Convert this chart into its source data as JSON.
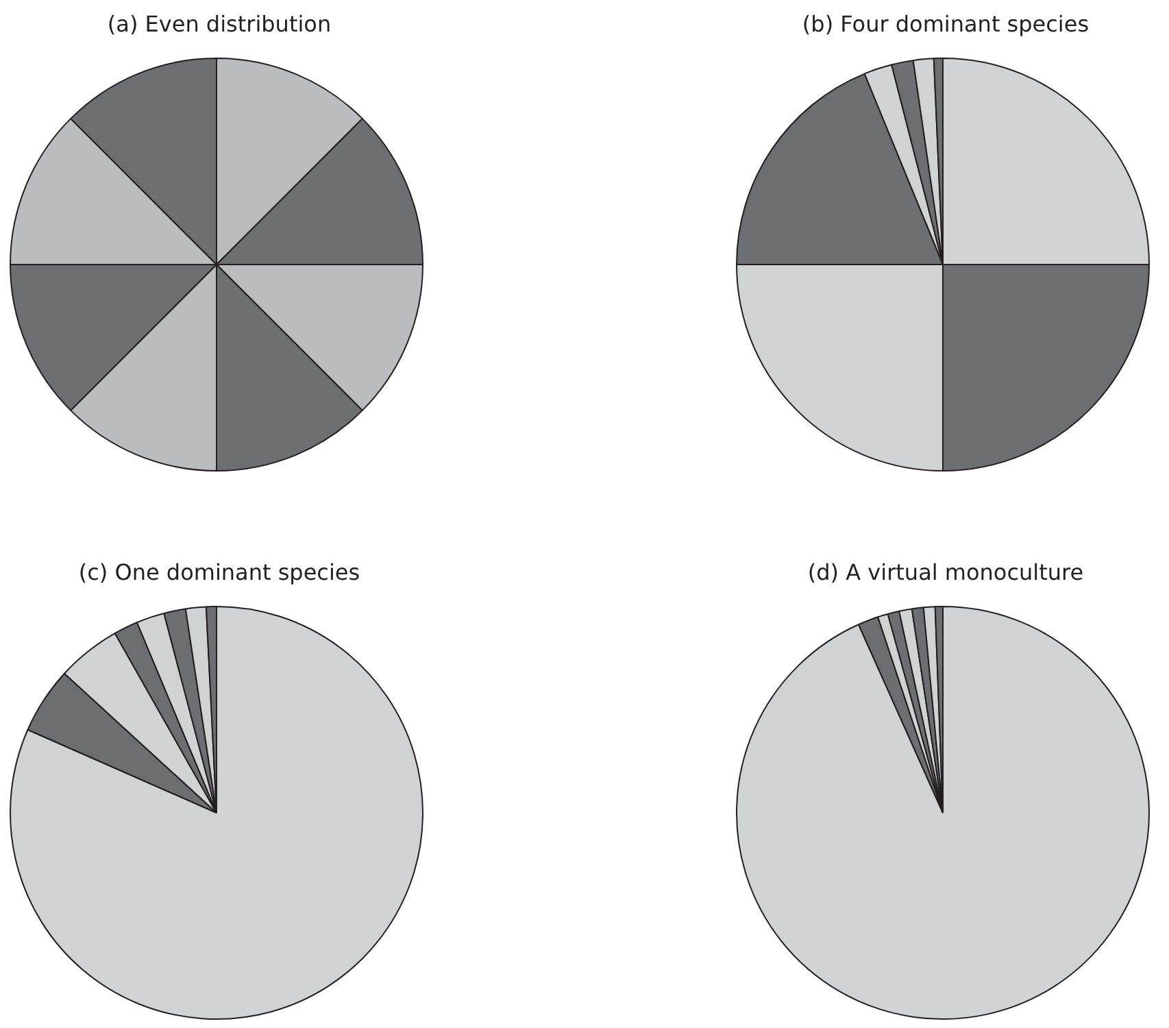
{
  "chart_data": [
    {
      "type": "pie",
      "title": "(a) Even distribution",
      "categories": [
        null,
        null,
        null,
        null,
        null,
        null,
        null,
        null
      ],
      "values": [
        12.5,
        12.5,
        12.5,
        12.5,
        12.5,
        12.5,
        12.5,
        12.5
      ],
      "colors": [
        "#bbbcbf",
        "#6d6e71",
        "#bbbcbf",
        "#6d6e71",
        "#bbbcbf",
        "#6d6e71",
        "#bbbcbf",
        "#6d6e71"
      ]
    },
    {
      "type": "pie",
      "title": "(b) Four dominant species",
      "categories": [
        null,
        null,
        null,
        null,
        null,
        null,
        null,
        null
      ],
      "values": [
        25,
        25,
        25,
        18.8,
        2.2,
        1.7,
        1.6,
        0.7
      ],
      "colors": [
        "#d1d2d4",
        "#6d6e71",
        "#d1d2d4",
        "#6d6e71",
        "#d1d2d4",
        "#6d6e71",
        "#d1d2d4",
        "#6d6e71"
      ]
    },
    {
      "type": "pie",
      "title": "(c) One dominant species",
      "categories": [
        null,
        null,
        null,
        null,
        null,
        null,
        null,
        null
      ],
      "values": [
        81.6,
        5.2,
        5.0,
        1.9,
        2.2,
        1.7,
        1.6,
        0.8
      ],
      "colors": [
        "#d1d2d4",
        "#6d6e71",
        "#d1d2d4",
        "#6d6e71",
        "#d1d2d4",
        "#6d6e71",
        "#d1d2d4",
        "#6d6e71"
      ]
    },
    {
      "type": "pie",
      "title": "(d) A virtual monoculture",
      "categories": [
        null,
        null,
        null,
        null,
        null,
        null,
        null,
        null
      ],
      "values": [
        93.3,
        1.6,
        0.8,
        0.9,
        1.0,
        0.9,
        0.9,
        0.6
      ],
      "colors": [
        "#d1d2d4",
        "#6d6e71",
        "#d1d2d4",
        "#6d6e71",
        "#d1d2d4",
        "#6d6e71",
        "#d1d2d4",
        "#6d6e71"
      ]
    }
  ]
}
